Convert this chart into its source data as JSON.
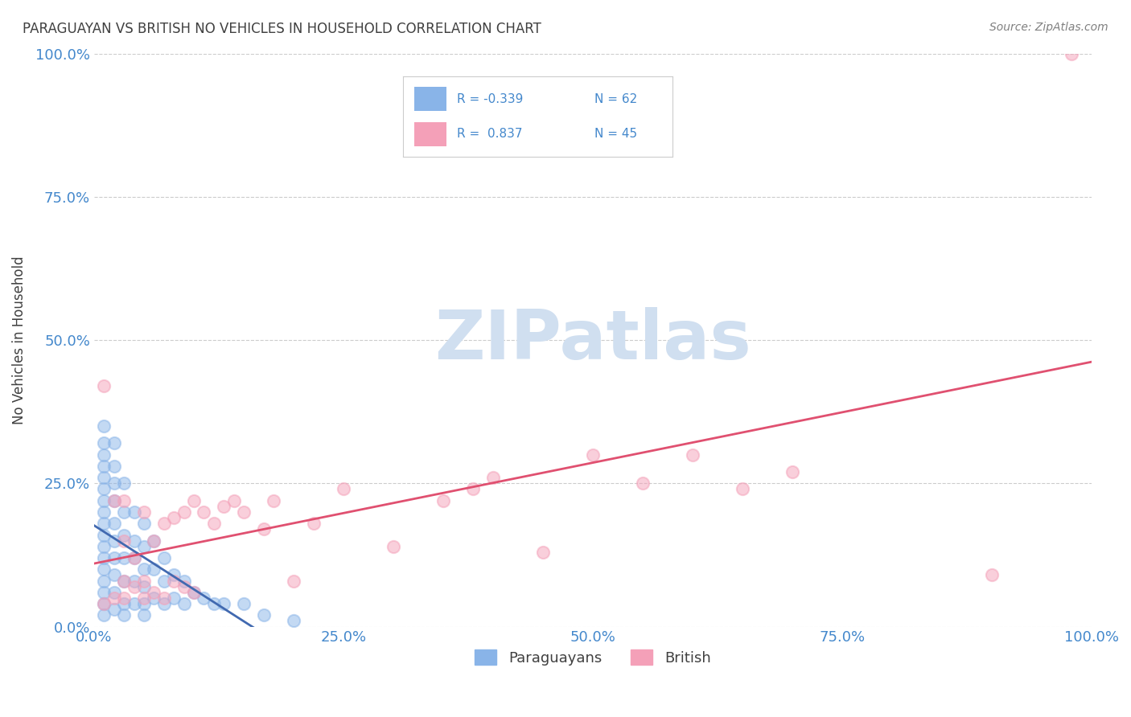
{
  "title": "PARAGUAYAN VS BRITISH NO VEHICLES IN HOUSEHOLD CORRELATION CHART",
  "source": "Source: ZipAtlas.com",
  "ylabel": "No Vehicles in Household",
  "ytick_labels": [
    "0.0%",
    "25.0%",
    "50.0%",
    "75.0%",
    "100.0%"
  ],
  "ytick_values": [
    0,
    0.25,
    0.5,
    0.75,
    1.0
  ],
  "xtick_values": [
    0,
    0.25,
    0.5,
    0.75,
    1.0
  ],
  "xtick_labels": [
    "0.0%",
    "25.0%",
    "50.0%",
    "75.0%",
    "100.0%"
  ],
  "xlim": [
    0,
    1.0
  ],
  "ylim": [
    0,
    1.0
  ],
  "blue_R": -0.339,
  "blue_N": 62,
  "pink_R": 0.837,
  "pink_N": 45,
  "legend_R_blue": "R = -0.339",
  "legend_N_blue": "N = 62",
  "legend_R_pink": "R =  0.837",
  "legend_N_pink": "N = 45",
  "blue_color": "#89B4E8",
  "pink_color": "#F4A0B8",
  "blue_line_color": "#4169B0",
  "pink_line_color": "#E05070",
  "background_color": "#FFFFFF",
  "grid_color": "#CCCCCC",
  "title_color": "#404040",
  "source_color": "#808080",
  "axis_label_color": "#4488CC",
  "watermark_color": "#D0DFF0",
  "watermark_text": "ZIPatlas",
  "legend_label_paraguayans": "Paraguayans",
  "legend_label_british": "British",
  "blue_x": [
    0.01,
    0.01,
    0.01,
    0.01,
    0.01,
    0.01,
    0.01,
    0.01,
    0.01,
    0.01,
    0.01,
    0.01,
    0.01,
    0.01,
    0.01,
    0.01,
    0.01,
    0.02,
    0.02,
    0.02,
    0.02,
    0.02,
    0.02,
    0.02,
    0.02,
    0.02,
    0.02,
    0.03,
    0.03,
    0.03,
    0.03,
    0.03,
    0.03,
    0.03,
    0.04,
    0.04,
    0.04,
    0.04,
    0.04,
    0.05,
    0.05,
    0.05,
    0.05,
    0.05,
    0.05,
    0.06,
    0.06,
    0.06,
    0.07,
    0.07,
    0.07,
    0.08,
    0.08,
    0.09,
    0.09,
    0.1,
    0.11,
    0.12,
    0.13,
    0.15,
    0.17,
    0.2
  ],
  "blue_y": [
    0.35,
    0.32,
    0.3,
    0.28,
    0.26,
    0.24,
    0.22,
    0.2,
    0.18,
    0.16,
    0.14,
    0.12,
    0.1,
    0.08,
    0.06,
    0.04,
    0.02,
    0.32,
    0.28,
    0.25,
    0.22,
    0.18,
    0.15,
    0.12,
    0.09,
    0.06,
    0.03,
    0.25,
    0.2,
    0.16,
    0.12,
    0.08,
    0.04,
    0.02,
    0.2,
    0.15,
    0.12,
    0.08,
    0.04,
    0.18,
    0.14,
    0.1,
    0.07,
    0.04,
    0.02,
    0.15,
    0.1,
    0.05,
    0.12,
    0.08,
    0.04,
    0.09,
    0.05,
    0.08,
    0.04,
    0.06,
    0.05,
    0.04,
    0.04,
    0.04,
    0.02,
    0.01
  ],
  "pink_x": [
    0.01,
    0.01,
    0.02,
    0.02,
    0.03,
    0.03,
    0.03,
    0.03,
    0.04,
    0.04,
    0.05,
    0.05,
    0.05,
    0.06,
    0.06,
    0.07,
    0.07,
    0.08,
    0.08,
    0.09,
    0.09,
    0.1,
    0.1,
    0.11,
    0.12,
    0.13,
    0.14,
    0.15,
    0.17,
    0.18,
    0.2,
    0.22,
    0.25,
    0.3,
    0.35,
    0.38,
    0.4,
    0.45,
    0.5,
    0.55,
    0.6,
    0.65,
    0.7,
    0.9,
    0.98
  ],
  "pink_y": [
    0.04,
    0.42,
    0.05,
    0.22,
    0.05,
    0.08,
    0.15,
    0.22,
    0.07,
    0.12,
    0.05,
    0.08,
    0.2,
    0.06,
    0.15,
    0.05,
    0.18,
    0.08,
    0.19,
    0.07,
    0.2,
    0.06,
    0.22,
    0.2,
    0.18,
    0.21,
    0.22,
    0.2,
    0.17,
    0.22,
    0.08,
    0.18,
    0.24,
    0.14,
    0.22,
    0.24,
    0.26,
    0.13,
    0.3,
    0.25,
    0.3,
    0.24,
    0.27,
    0.09,
    1.0
  ]
}
